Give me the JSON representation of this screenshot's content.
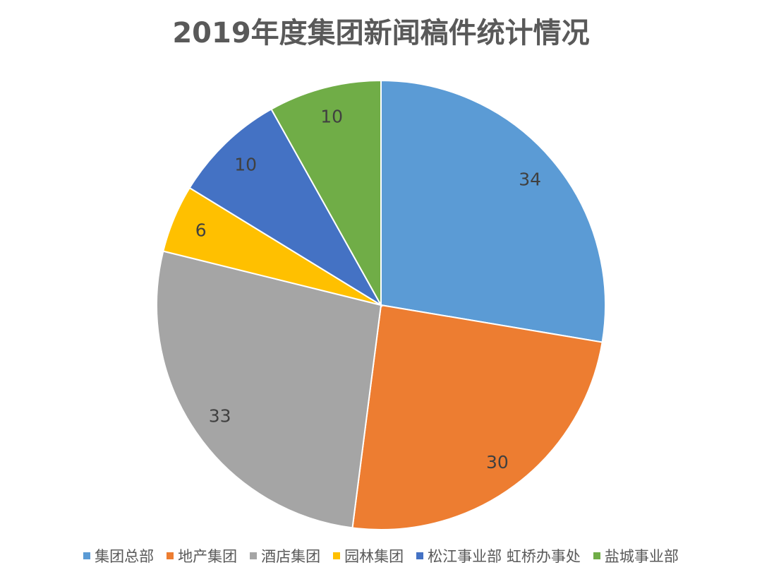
{
  "chart_data": {
    "type": "pie",
    "title": "2019年度集团新闻稿件统计情况",
    "categories": [
      "集团总部",
      "地产集团",
      "酒店集团",
      "园林集团",
      "松江事业部 虹桥办事处",
      "盐城事业部"
    ],
    "values": [
      34,
      30,
      33,
      6,
      10,
      10
    ],
    "colors": [
      "#5B9BD5",
      "#ED7D31",
      "#A5A5A5",
      "#FFC000",
      "#4472C4",
      "#70AD47"
    ],
    "start_angle": "12 o'clock",
    "direction": "clockwise",
    "data_labels": true,
    "legend_position": "bottom"
  }
}
